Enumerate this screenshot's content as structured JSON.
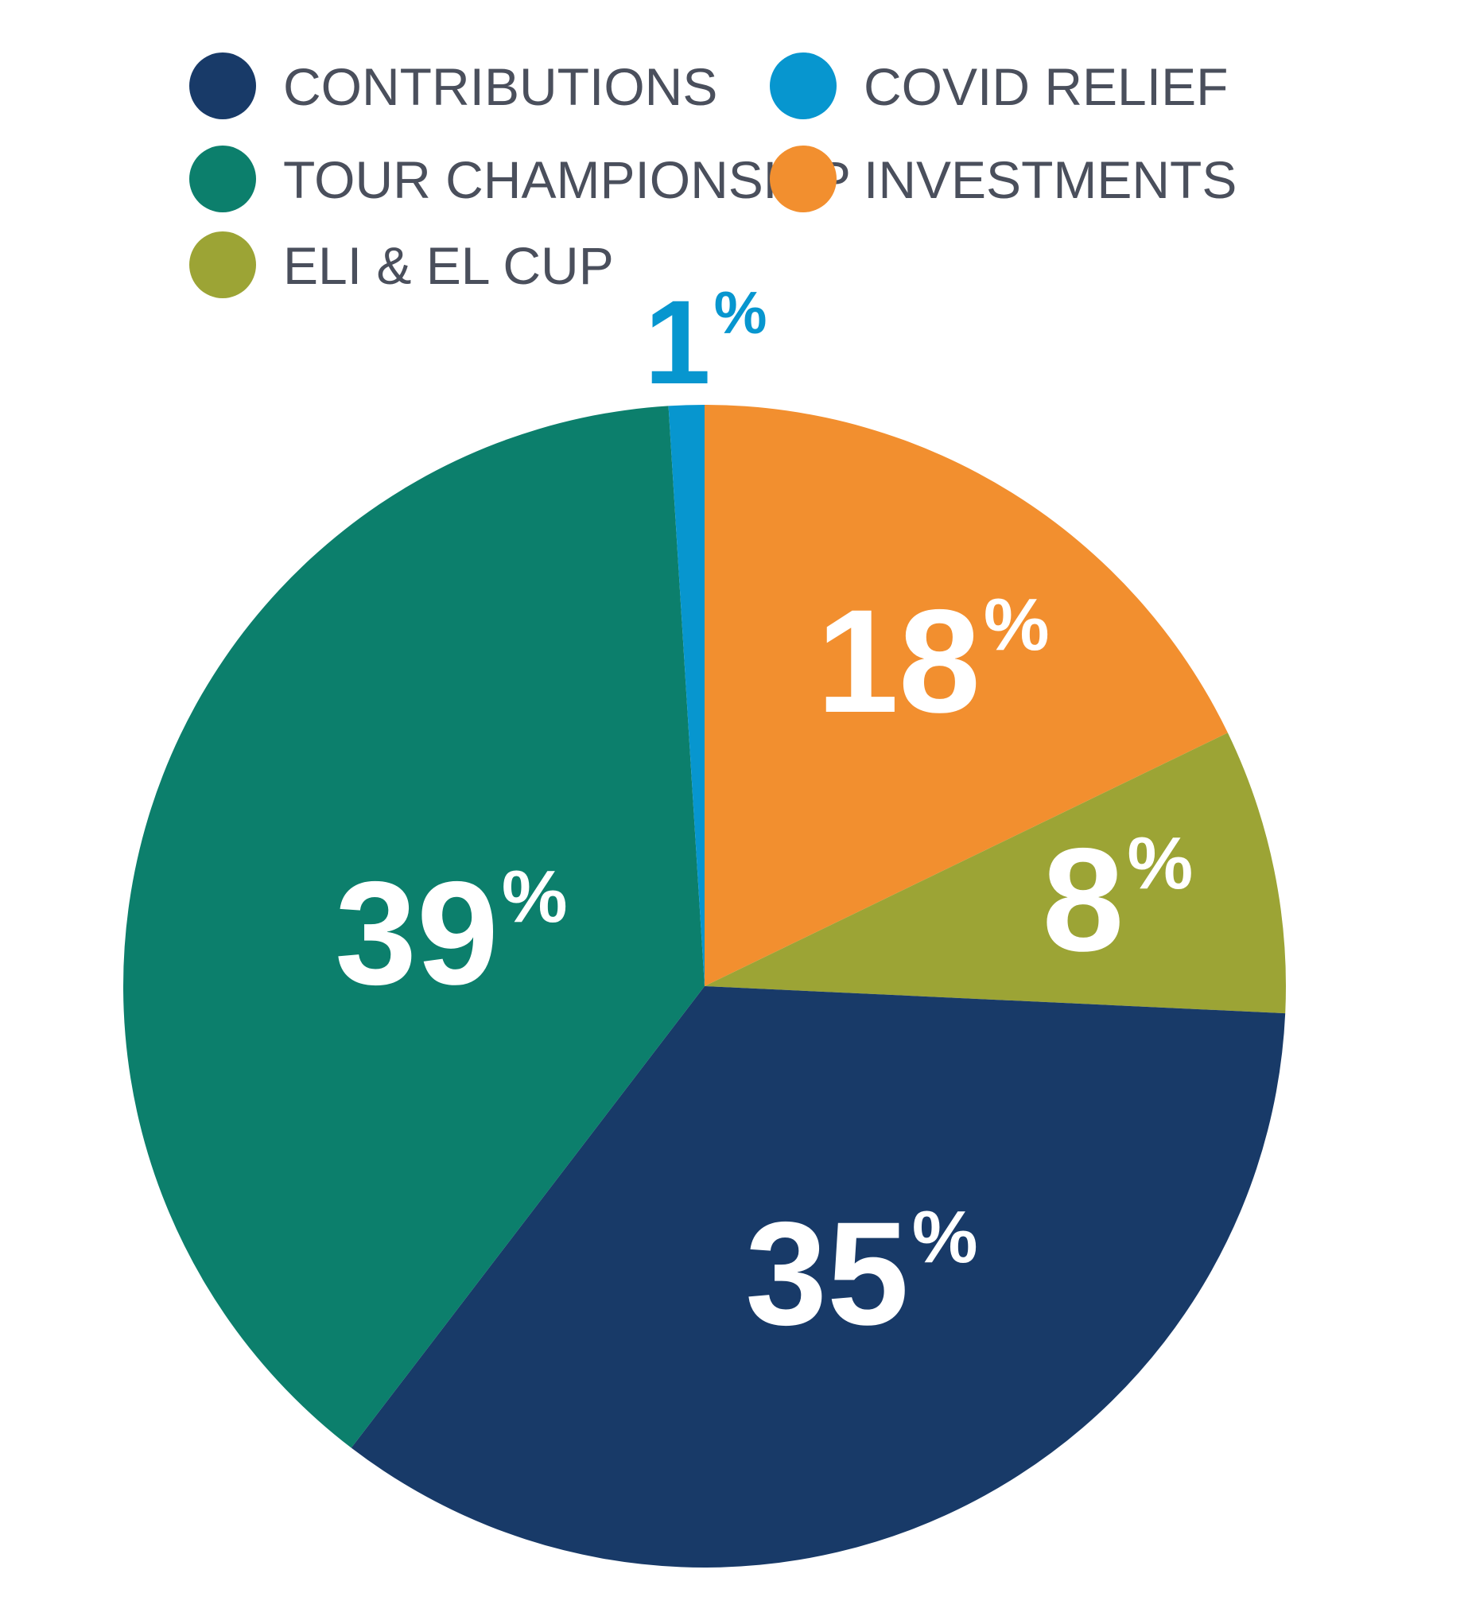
{
  "chart_data": {
    "type": "pie",
    "title": "",
    "slices": [
      {
        "label": "INVESTMENTS",
        "value": 18,
        "display": "18",
        "color": "#F28F2F"
      },
      {
        "label": "ELI & EL CUP",
        "value": 8,
        "display": "8",
        "color": "#9CA435"
      },
      {
        "label": "CONTRIBUTIONS",
        "value": 35,
        "display": "35",
        "color": "#183A68"
      },
      {
        "label": "TOUR CHAMPIONSHIP",
        "value": 39,
        "display": "39",
        "color": "#0C7F6C"
      },
      {
        "label": "COVID RELIEF",
        "value": 1,
        "display": "1",
        "color": "#0796CF"
      }
    ],
    "percent_sign": "%",
    "legend_order": [
      "CONTRIBUTIONS",
      "COVID RELIEF",
      "TOUR CHAMPIONSHIP",
      "INVESTMENTS",
      "ELI & EL CUP"
    ],
    "legend_placement": "top"
  },
  "colors": {
    "legend_text": "#4a4f5c",
    "slice_label": "#ffffff",
    "covid_label": "#0796CF"
  }
}
